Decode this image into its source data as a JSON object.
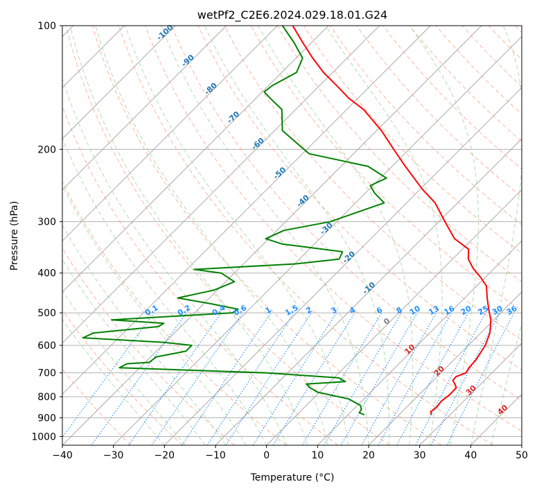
{
  "chart_data": {
    "type": "line",
    "subtype": "skew-t log-p diagram",
    "title": "wetPf2_C2E6.2024.029.18.01.G24",
    "xlabel": "Temperature (°C)",
    "ylabel": "Pressure (hPa)",
    "xlim": [
      -40,
      50
    ],
    "ylim": [
      1050,
      100
    ],
    "yscale": "log",
    "x_ticks": [
      -40,
      -30,
      -20,
      -10,
      0,
      10,
      20,
      30,
      40,
      50
    ],
    "x_tick_labels": [
      "−40",
      "−30",
      "−20",
      "−10",
      "0",
      "10",
      "20",
      "30",
      "40",
      "50"
    ],
    "y_ticks": [
      100,
      200,
      300,
      400,
      500,
      600,
      700,
      800,
      900,
      1000
    ],
    "y_tick_labels": [
      "100",
      "200",
      "300",
      "400",
      "500",
      "600",
      "700",
      "800",
      "900",
      "1000"
    ],
    "grid": true,
    "colors": {
      "temperature": "#ff0000",
      "dewpoint": "#008000",
      "isotherm": "#a9a9a9",
      "dry_adiabat": "#fca082",
      "moist_adiabat": "#9dd39a",
      "mixing_ratio": "#1e90ff",
      "height_label": "#1f77b4",
      "moist_label": "#d62728",
      "zero_label": "#7f7f7f"
    },
    "series": [
      {
        "key": "temperature",
        "points": [
          {
            "p": 885,
            "t": 26.3
          },
          {
            "p": 870,
            "t": 25.6
          },
          {
            "p": 850,
            "t": 25.9
          },
          {
            "p": 820,
            "t": 25.6
          },
          {
            "p": 790,
            "t": 26.0
          },
          {
            "p": 760,
            "t": 25.9
          },
          {
            "p": 745,
            "t": 24.9
          },
          {
            "p": 730,
            "t": 23.8
          },
          {
            "p": 715,
            "t": 23.7
          },
          {
            "p": 700,
            "t": 24.9
          },
          {
            "p": 680,
            "t": 24.5
          },
          {
            "p": 650,
            "t": 24.3
          },
          {
            "p": 600,
            "t": 23.3
          },
          {
            "p": 560,
            "t": 21.8
          },
          {
            "p": 520,
            "t": 19.4
          },
          {
            "p": 490,
            "t": 16.9
          },
          {
            "p": 460,
            "t": 14.4
          },
          {
            "p": 430,
            "t": 11.9
          },
          {
            "p": 410,
            "t": 9.1
          },
          {
            "p": 390,
            "t": 5.9
          },
          {
            "p": 370,
            "t": 3.1
          },
          {
            "p": 350,
            "t": 1.2
          },
          {
            "p": 330,
            "t": -3.6
          },
          {
            "p": 300,
            "t": -8.8
          },
          {
            "p": 270,
            "t": -14.4
          },
          {
            "p": 250,
            "t": -19.6
          },
          {
            "p": 220,
            "t": -27.4
          },
          {
            "p": 200,
            "t": -33.0
          },
          {
            "p": 180,
            "t": -39.1
          },
          {
            "p": 160,
            "t": -46.7
          },
          {
            "p": 150,
            "t": -51.9
          },
          {
            "p": 140,
            "t": -56.6
          },
          {
            "p": 130,
            "t": -61.8
          },
          {
            "p": 120,
            "t": -66.7
          },
          {
            "p": 110,
            "t": -71.7
          },
          {
            "p": 100,
            "t": -77.0
          }
        ]
      },
      {
        "key": "dewpoint",
        "points": [
          {
            "p": 885,
            "t": 13.2
          },
          {
            "p": 875,
            "t": 11.8
          },
          {
            "p": 860,
            "t": 11.6
          },
          {
            "p": 840,
            "t": 10.6
          },
          {
            "p": 810,
            "t": 7.0
          },
          {
            "p": 780,
            "t": -0.4
          },
          {
            "p": 760,
            "t": -2.8
          },
          {
            "p": 745,
            "t": -4.2
          },
          {
            "p": 735,
            "t": 3.0
          },
          {
            "p": 720,
            "t": 1.0
          },
          {
            "p": 700,
            "t": -14.0
          },
          {
            "p": 680,
            "t": -44.0
          },
          {
            "p": 665,
            "t": -43.3
          },
          {
            "p": 660,
            "t": -39.2
          },
          {
            "p": 640,
            "t": -38.9
          },
          {
            "p": 620,
            "t": -34.2
          },
          {
            "p": 600,
            "t": -34.2
          },
          {
            "p": 590,
            "t": -40.1
          },
          {
            "p": 575,
            "t": -57.0
          },
          {
            "p": 560,
            "t": -55.9
          },
          {
            "p": 540,
            "t": -44.4
          },
          {
            "p": 530,
            "t": -44.0
          },
          {
            "p": 520,
            "t": -54.9
          },
          {
            "p": 500,
            "t": -32.6
          },
          {
            "p": 490,
            "t": -32.2
          },
          {
            "p": 475,
            "t": -38.7
          },
          {
            "p": 460,
            "t": -46.2
          },
          {
            "p": 440,
            "t": -40.6
          },
          {
            "p": 420,
            "t": -38.3
          },
          {
            "p": 400,
            "t": -42.6
          },
          {
            "p": 392,
            "t": -48.6
          },
          {
            "p": 380,
            "t": -29.8
          },
          {
            "p": 370,
            "t": -22.2
          },
          {
            "p": 355,
            "t": -23.0
          },
          {
            "p": 340,
            "t": -36.3
          },
          {
            "p": 330,
            "t": -40.6
          },
          {
            "p": 315,
            "t": -38.6
          },
          {
            "p": 300,
            "t": -31.3
          },
          {
            "p": 270,
            "t": -24.4
          },
          {
            "p": 255,
            "t": -28.3
          },
          {
            "p": 245,
            "t": -30.5
          },
          {
            "p": 235,
            "t": -28.8
          },
          {
            "p": 220,
            "t": -34.7
          },
          {
            "p": 205,
            "t": -48.7
          },
          {
            "p": 195,
            "t": -52.5
          },
          {
            "p": 180,
            "t": -58.5
          },
          {
            "p": 160,
            "t": -62.7
          },
          {
            "p": 150,
            "t": -67.3
          },
          {
            "p": 145,
            "t": -69.6
          },
          {
            "p": 140,
            "t": -69.3
          },
          {
            "p": 130,
            "t": -67.1
          },
          {
            "p": 120,
            "t": -68.7
          },
          {
            "p": 110,
            "t": -73.4
          },
          {
            "p": 100,
            "t": -79.0
          }
        ]
      }
    ],
    "height_labels": [
      {
        "text": "-100",
        "p": 105
      },
      {
        "text": "-90",
        "p": 123
      },
      {
        "text": "-80",
        "p": 144
      },
      {
        "text": "-70",
        "p": 169
      },
      {
        "text": "-60",
        "p": 196
      },
      {
        "text": "-50",
        "p": 231
      },
      {
        "text": "-40",
        "p": 270
      },
      {
        "text": "-30",
        "p": 315
      },
      {
        "text": "-20",
        "p": 370
      },
      {
        "text": "-10",
        "p": 440
      }
    ],
    "mixing_ratio_labels": [
      "0.1",
      "0.2",
      "0.4",
      "0.6",
      "1",
      "1.5",
      "2",
      "3",
      "4",
      "6",
      "8",
      "10",
      "13",
      "16",
      "20",
      "25",
      "30",
      "36"
    ],
    "mixing_ratio_values": [
      0.1,
      0.2,
      0.4,
      0.6,
      1,
      1.5,
      2,
      3,
      4,
      6,
      8,
      10,
      13,
      16,
      20,
      25,
      30,
      36
    ],
    "moist_labels": [
      {
        "text": "0",
        "t": 0,
        "p": 530
      },
      {
        "text": "10",
        "t": 10,
        "p": 620
      },
      {
        "text": "20",
        "t": 20,
        "p": 700
      },
      {
        "text": "30",
        "t": 30,
        "p": 780
      },
      {
        "text": "40",
        "t": 40,
        "p": 870
      }
    ]
  }
}
